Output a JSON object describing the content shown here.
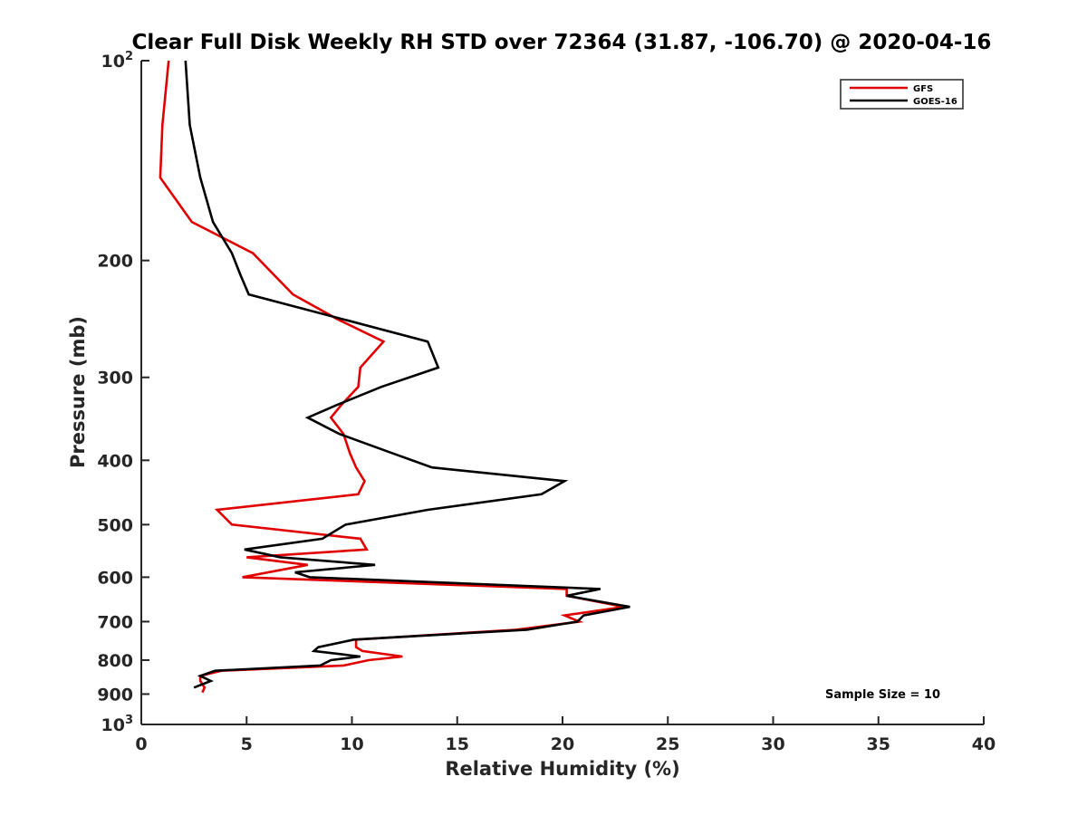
{
  "chart_data": {
    "type": "line",
    "title": "Clear Full Disk Weekly RH STD over 72364 (31.87, -106.70) @ 2020-04-16",
    "xlabel": "Relative Humidity (%)",
    "ylabel": "Pressure (mb)",
    "xlim": [
      0,
      40
    ],
    "ylim": [
      100,
      1000
    ],
    "yscale": "log",
    "y_reversed": true,
    "grid": false,
    "legend_position": "top-right",
    "x_ticks": [
      "0",
      "5",
      "10",
      "15",
      "20",
      "25",
      "30",
      "35",
      "40"
    ],
    "y_ticks": [
      {
        "value": 100,
        "base": "10",
        "exp": "2"
      },
      {
        "value": 200,
        "label": "200"
      },
      {
        "value": 300,
        "label": "300"
      },
      {
        "value": 400,
        "label": "400"
      },
      {
        "value": 500,
        "label": "500"
      },
      {
        "value": 600,
        "label": "600"
      },
      {
        "value": 700,
        "label": "700"
      },
      {
        "value": 800,
        "label": "800"
      },
      {
        "value": 900,
        "label": "900"
      },
      {
        "value": 1000,
        "base": "10",
        "exp": "3"
      }
    ],
    "annotation": "Sample Size = 10",
    "series": [
      {
        "name": "GFS",
        "color": "#e00000",
        "points": [
          [
            1.3,
            100
          ],
          [
            1.0,
            125
          ],
          [
            0.9,
            150
          ],
          [
            2.4,
            175
          ],
          [
            5.3,
            195
          ],
          [
            7.2,
            225
          ],
          [
            9.3,
            245
          ],
          [
            11.5,
            265
          ],
          [
            10.4,
            290
          ],
          [
            10.3,
            310
          ],
          [
            9.5,
            330
          ],
          [
            9.0,
            345
          ],
          [
            9.6,
            365
          ],
          [
            9.9,
            390
          ],
          [
            10.2,
            410
          ],
          [
            10.6,
            430
          ],
          [
            10.3,
            450
          ],
          [
            3.6,
            475
          ],
          [
            4.3,
            500
          ],
          [
            10.4,
            525
          ],
          [
            10.7,
            545
          ],
          [
            5.0,
            560
          ],
          [
            7.9,
            575
          ],
          [
            4.8,
            600
          ],
          [
            20.2,
            625
          ],
          [
            20.2,
            640
          ],
          [
            22.9,
            665
          ],
          [
            20.1,
            685
          ],
          [
            20.8,
            700
          ],
          [
            17.8,
            720
          ],
          [
            10.2,
            745
          ],
          [
            10.2,
            765
          ],
          [
            10.5,
            775
          ],
          [
            12.4,
            790
          ],
          [
            10.8,
            800
          ],
          [
            9.6,
            815
          ],
          [
            3.8,
            830
          ],
          [
            2.8,
            845
          ],
          [
            2.8,
            860
          ],
          [
            3.0,
            880
          ],
          [
            2.9,
            895
          ]
        ]
      },
      {
        "name": "GOES-16",
        "color": "#000000",
        "points": [
          [
            2.1,
            100
          ],
          [
            2.3,
            125
          ],
          [
            2.8,
            150
          ],
          [
            3.4,
            175
          ],
          [
            4.3,
            195
          ],
          [
            4.7,
            210
          ],
          [
            5.1,
            225
          ],
          [
            13.6,
            265
          ],
          [
            14.1,
            290
          ],
          [
            11.4,
            310
          ],
          [
            9.3,
            330
          ],
          [
            7.9,
            345
          ],
          [
            9.4,
            365
          ],
          [
            11.9,
            390
          ],
          [
            13.8,
            410
          ],
          [
            20.1,
            430
          ],
          [
            19.0,
            450
          ],
          [
            13.6,
            475
          ],
          [
            9.7,
            500
          ],
          [
            8.6,
            525
          ],
          [
            4.9,
            545
          ],
          [
            6.6,
            560
          ],
          [
            11.1,
            575
          ],
          [
            7.3,
            590
          ],
          [
            8.0,
            600
          ],
          [
            21.8,
            625
          ],
          [
            20.2,
            640
          ],
          [
            23.2,
            665
          ],
          [
            21.0,
            685
          ],
          [
            20.7,
            700
          ],
          [
            18.3,
            720
          ],
          [
            10.1,
            745
          ],
          [
            8.4,
            765
          ],
          [
            8.2,
            775
          ],
          [
            10.4,
            790
          ],
          [
            9.0,
            800
          ],
          [
            8.5,
            815
          ],
          [
            3.5,
            830
          ],
          [
            2.8,
            845
          ],
          [
            3.3,
            860
          ],
          [
            2.5,
            880
          ]
        ]
      }
    ]
  }
}
